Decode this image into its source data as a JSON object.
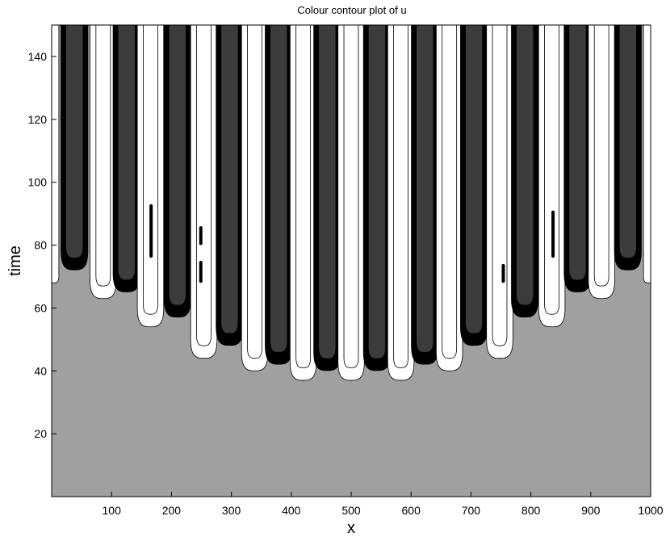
{
  "chart_data": {
    "type": "heatmap",
    "title": "Colour contour plot of u",
    "xlabel": "x",
    "ylabel": "time",
    "xlim": [
      0,
      1000
    ],
    "ylim": [
      0,
      150
    ],
    "x_ticks": [
      "100",
      "200",
      "300",
      "400",
      "500",
      "600",
      "700",
      "800",
      "900",
      "1000"
    ],
    "y_ticks": [
      "20",
      "40",
      "60",
      "80",
      "100",
      "120",
      "140"
    ],
    "grid": false,
    "legend": "none",
    "levels": {
      "background": "#a0a0a0",
      "high": "#ffffff",
      "low_outer": "#000000",
      "low_inner": "#3c3c3c"
    },
    "stripes": [
      {
        "level": "high",
        "x_center": 4,
        "half_width": 8,
        "tip_time": 68
      },
      {
        "level": "low",
        "x_center": 38,
        "half_width": 23,
        "tip_time": 72
      },
      {
        "level": "high",
        "x_center": 86,
        "half_width": 22,
        "tip_time": 63
      },
      {
        "level": "low",
        "x_center": 125,
        "half_width": 23,
        "tip_time": 65
      },
      {
        "level": "high",
        "x_center": 165,
        "half_width": 22,
        "tip_time": 54
      },
      {
        "level": "low",
        "x_center": 210,
        "half_width": 23,
        "tip_time": 57
      },
      {
        "level": "high",
        "x_center": 254,
        "half_width": 22,
        "tip_time": 44
      },
      {
        "level": "low",
        "x_center": 297,
        "half_width": 23,
        "tip_time": 48
      },
      {
        "level": "high",
        "x_center": 339,
        "half_width": 22,
        "tip_time": 40
      },
      {
        "level": "low",
        "x_center": 379,
        "half_width": 23,
        "tip_time": 42
      },
      {
        "level": "high",
        "x_center": 420,
        "half_width": 22,
        "tip_time": 37
      },
      {
        "level": "low",
        "x_center": 460,
        "half_width": 23,
        "tip_time": 40
      },
      {
        "level": "high",
        "x_center": 500,
        "half_width": 22,
        "tip_time": 37
      },
      {
        "level": "low",
        "x_center": 543,
        "half_width": 23,
        "tip_time": 40
      },
      {
        "level": "high",
        "x_center": 583,
        "half_width": 22,
        "tip_time": 37
      },
      {
        "level": "low",
        "x_center": 623,
        "half_width": 23,
        "tip_time": 42
      },
      {
        "level": "high",
        "x_center": 664,
        "half_width": 22,
        "tip_time": 40
      },
      {
        "level": "low",
        "x_center": 705,
        "half_width": 23,
        "tip_time": 48
      },
      {
        "level": "high",
        "x_center": 748,
        "half_width": 22,
        "tip_time": 44
      },
      {
        "level": "low",
        "x_center": 790,
        "half_width": 23,
        "tip_time": 57
      },
      {
        "level": "high",
        "x_center": 835,
        "half_width": 22,
        "tip_time": 54
      },
      {
        "level": "low",
        "x_center": 878,
        "half_width": 23,
        "tip_time": 65
      },
      {
        "level": "high",
        "x_center": 918,
        "half_width": 22,
        "tip_time": 63
      },
      {
        "level": "low",
        "x_center": 962,
        "half_width": 23,
        "tip_time": 72
      },
      {
        "level": "high",
        "x_center": 996,
        "half_width": 8,
        "tip_time": 68
      }
    ],
    "defects": [
      {
        "x": 166,
        "t_from": 76,
        "t_to": 93
      },
      {
        "x": 249,
        "t_from": 80,
        "t_to": 86
      },
      {
        "x": 249,
        "t_from": 68,
        "t_to": 75
      },
      {
        "x": 754,
        "t_from": 68,
        "t_to": 74
      },
      {
        "x": 837,
        "t_from": 76,
        "t_to": 91
      }
    ]
  }
}
